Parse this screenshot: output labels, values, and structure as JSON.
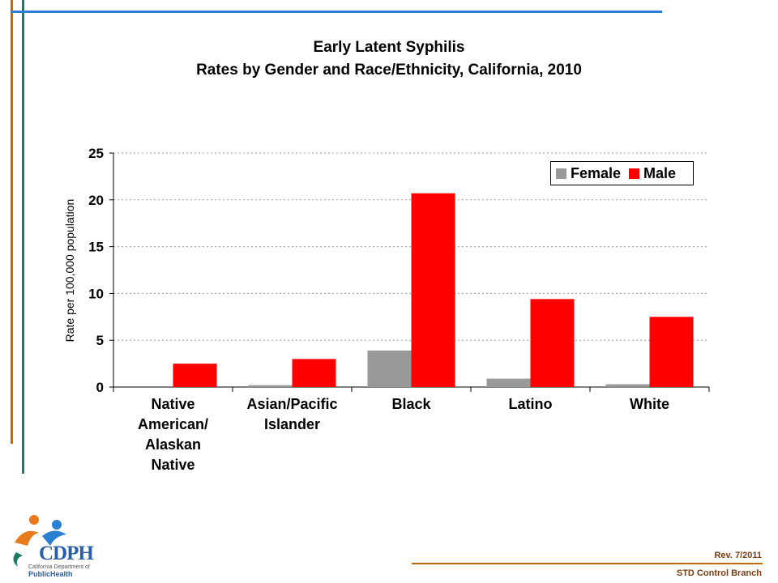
{
  "title_line1": "Early Latent Syphilis",
  "title_line2": "Rates by Gender and Race/Ethnicity, California, 2010",
  "footer": {
    "revision": "Rev. 7/2011",
    "branch": "STD Control Branch",
    "logo_text": "CDPH",
    "logo_small": "California Department of",
    "logo_public_health": "PublicHealth"
  },
  "colors": {
    "female": "#999999",
    "male": "#ff0000",
    "accent_orange": "#c46a12",
    "accent_teal": "#1a7a6a",
    "accent_blue": "#2a7fd0"
  },
  "chart_data": {
    "type": "bar",
    "title": "Early Latent Syphilis\nRates by Gender and Race/Ethnicity, California, 2010",
    "ylabel": "Rate per 100,000 population",
    "xlabel": "",
    "ylim": [
      0,
      25
    ],
    "yticks": [
      "0",
      "5",
      "10",
      "15",
      "20",
      "25"
    ],
    "grid": true,
    "legend_position": "top-right",
    "categories": [
      "Native\nAmerican/\nAlaskan\nNative",
      "Asian/Pacific\nIslander",
      "Black",
      "Latino",
      "White"
    ],
    "series": [
      {
        "name": "Female",
        "color": "#999999",
        "values": [
          0.0,
          0.2,
          3.9,
          0.9,
          0.3
        ]
      },
      {
        "name": "Male",
        "color": "#ff0000",
        "values": [
          2.5,
          3.0,
          20.7,
          9.4,
          7.5
        ]
      }
    ]
  }
}
